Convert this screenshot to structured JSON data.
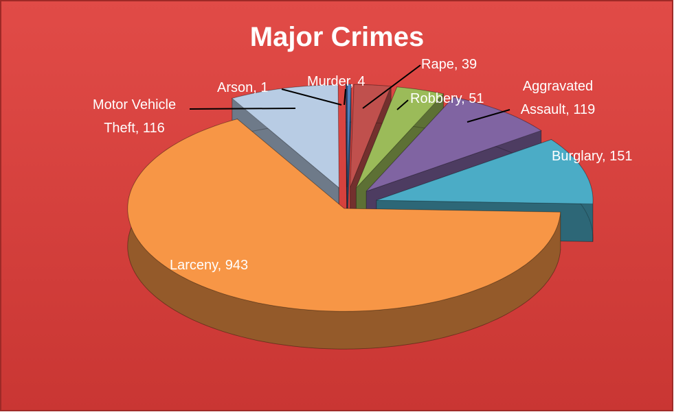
{
  "chart_data": {
    "type": "pie",
    "title": "Major Crimes",
    "values": [
      4,
      39,
      51,
      119,
      151,
      943,
      116,
      1
    ],
    "value_labels": [
      "Murder, 4",
      "Rape, 39",
      "Robbery, 51",
      "Aggravated Assault, 119",
      "Burglary, 151",
      "Larceny, 943",
      "Motor Vehicle Theft, 116",
      "Arson, 1"
    ],
    "colors": [
      "#4f81bd",
      "#c0504d",
      "#9bbb59",
      "#8064a2",
      "#4bacc6",
      "#f79646",
      "#b8cce4",
      "#2c5f9e"
    ]
  }
}
